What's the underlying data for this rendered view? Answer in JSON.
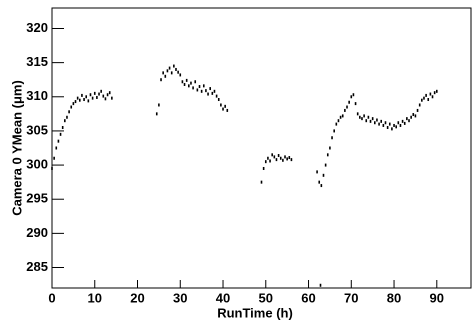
{
  "chart_data": {
    "type": "scatter",
    "x_label": "RunTime (h)",
    "y_label": "Camera 0 YMean (μm)",
    "xlim": [
      0,
      98
    ],
    "ylim": [
      282,
      323
    ],
    "xticks": [
      0,
      10,
      20,
      30,
      40,
      50,
      60,
      70,
      80,
      90
    ],
    "yticks": [
      285,
      290,
      295,
      300,
      305,
      310,
      315,
      320
    ],
    "color": "#000000",
    "x": [
      0,
      0.5,
      1,
      1.5,
      2,
      2.5,
      3,
      3.5,
      4,
      4.5,
      5,
      5.5,
      6,
      6.5,
      7,
      7.5,
      8,
      8.5,
      9,
      9.5,
      10,
      10.5,
      11,
      11.5,
      12,
      12.5,
      13,
      13.5,
      14,
      24.5,
      25,
      25.5,
      26,
      26.5,
      27,
      27.5,
      28,
      28.5,
      29,
      29.5,
      30,
      30.5,
      31,
      31.5,
      32,
      32.5,
      33,
      33.5,
      34,
      34.5,
      35,
      35.5,
      36,
      36.5,
      37,
      37.5,
      38,
      38.5,
      39,
      39.5,
      40,
      40.5,
      41,
      49,
      49.5,
      50,
      50.5,
      51,
      51.5,
      52,
      52.5,
      53,
      53.5,
      54,
      54.5,
      55,
      55.5,
      56,
      62.8,
      62,
      62.5,
      63,
      63.5,
      64,
      64.5,
      65,
      65.5,
      66,
      66.5,
      67,
      67.5,
      68,
      68.5,
      69,
      69.5,
      70,
      70.5,
      71,
      71.5,
      72,
      72.5,
      73,
      73.5,
      74,
      74.5,
      75,
      75.5,
      76,
      76.5,
      77,
      77.5,
      78,
      78.5,
      79,
      79.5,
      80,
      80.5,
      81,
      81.5,
      82,
      82.5,
      83,
      83.5,
      84,
      84.5,
      85,
      85.5,
      86,
      86.5,
      87,
      87.5,
      88,
      88.5,
      89,
      89.5,
      90
    ],
    "values": [
      299.5,
      301,
      302.5,
      303.5,
      304.5,
      305.5,
      306.5,
      307,
      307.8,
      308.5,
      309,
      309.3,
      309.8,
      309.5,
      310.2,
      309.6,
      310,
      309.4,
      310.3,
      309.8,
      310.5,
      309.9,
      310.4,
      310.8,
      310.1,
      309.7,
      310.3,
      310.6,
      309.8,
      307.5,
      308.8,
      312.5,
      313.5,
      313,
      313.8,
      314.2,
      313.5,
      314.5,
      314,
      313.6,
      313.2,
      312.2,
      311.8,
      312.4,
      311.6,
      312,
      311.3,
      312.2,
      311,
      311.5,
      310.8,
      311.6,
      310.9,
      310.4,
      311.2,
      310.5,
      310.8,
      310.1,
      309.6,
      308.8,
      308.2,
      308.6,
      308,
      297.5,
      299.5,
      300.5,
      301,
      300.6,
      301.5,
      301.2,
      300.8,
      301.4,
      301,
      300.7,
      301.2,
      300.9,
      301.1,
      300.8,
      282.4,
      299,
      297.5,
      297,
      298.5,
      300,
      301.5,
      302.5,
      304,
      305,
      306,
      306.5,
      307,
      307.2,
      308,
      308.5,
      309.2,
      310,
      310.3,
      309,
      307.5,
      307,
      306.8,
      307.2,
      306.5,
      307,
      306.4,
      306.8,
      306.2,
      306.6,
      306,
      306.4,
      305.8,
      306.2,
      305.5,
      306,
      305.3,
      305.8,
      305.6,
      306.2,
      305.8,
      306.4,
      306.1,
      306.8,
      306.5,
      307,
      307.4,
      307.2,
      308,
      308.8,
      309.5,
      309.8,
      310.2,
      309.6,
      310.4,
      310,
      310.6,
      310.8
    ]
  }
}
